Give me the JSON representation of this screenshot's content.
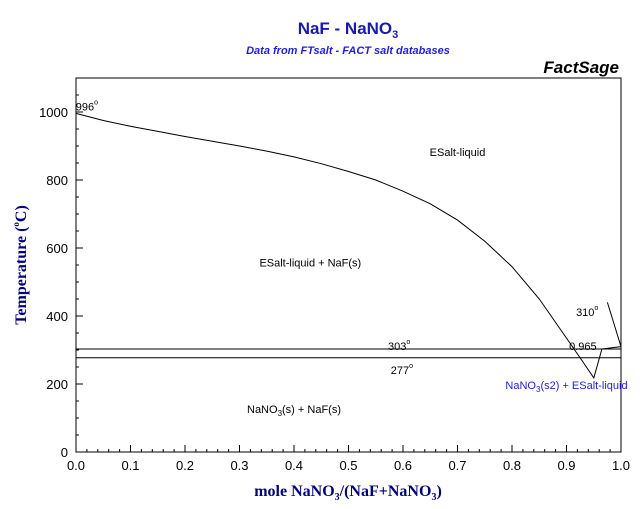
{
  "chart_data": {
    "type": "line",
    "title": "NaF - NaNO",
    "title_sub": "3",
    "subtitle": "Data from FTsalt - FACT salt databases",
    "brand": "FactSage",
    "xlabel": {
      "pre": "mole NaNO",
      "sub": "3",
      "post": "/(NaF+NaNO",
      "sub2": "3",
      "end": ")"
    },
    "ylabel": {
      "pre": "Temperature (",
      "deg": "o",
      "post": "C)"
    },
    "xlim": [
      0,
      1
    ],
    "ylim": [
      0,
      1100
    ],
    "x_ticks": [
      0.0,
      0.1,
      0.2,
      0.3,
      0.4,
      0.5,
      0.6,
      0.7,
      0.8,
      0.9,
      1.0
    ],
    "x_tick_labels": [
      "0.0",
      "0.1",
      "0.2",
      "0.3",
      "0.4",
      "0.5",
      "0.6",
      "0.7",
      "0.8",
      "0.9",
      "1.0"
    ],
    "y_ticks": [
      0,
      200,
      400,
      600,
      800,
      1000
    ],
    "y_tick_labels": [
      "0",
      "200",
      "400",
      "600",
      "800",
      "1000"
    ],
    "grid": false,
    "series": [
      {
        "x": [
          0.0,
          0.05,
          0.1,
          0.15,
          0.2,
          0.25,
          0.3,
          0.35,
          0.4,
          0.45,
          0.5,
          0.55,
          0.6,
          0.65,
          0.7,
          0.75,
          0.8,
          0.85,
          0.9,
          0.93,
          0.95,
          0.965
        ],
        "y": [
          996,
          975,
          958,
          943,
          928,
          914,
          900,
          885,
          868,
          848,
          825,
          800,
          767,
          730,
          682,
          620,
          545,
          450,
          335,
          265,
          218,
          303
        ]
      },
      {
        "x": [
          0.965,
          1.0
        ],
        "y": [
          303,
          310
        ]
      },
      {
        "x": [
          1.0,
          0.975
        ],
        "y": [
          310,
          440
        ]
      },
      {
        "x": [
          0.0,
          1.0
        ],
        "y": [
          303,
          303
        ]
      },
      {
        "x": [
          0.0,
          1.0
        ],
        "y": [
          277,
          277
        ]
      }
    ],
    "annotations": [
      {
        "text": "996",
        "deg": "o",
        "x": 0.02,
        "y": 1004,
        "color": "#000000"
      },
      {
        "text": "ESalt-liquid",
        "x": 0.7,
        "y": 870,
        "color": "#000000"
      },
      {
        "text": "ESalt-liquid + NaF(s)",
        "x": 0.43,
        "y": 545,
        "color": "#000000"
      },
      {
        "text": "310",
        "deg": "o",
        "x": 0.938,
        "y": 400,
        "color": "#000000"
      },
      {
        "text": "303",
        "deg": "o",
        "x": 0.593,
        "y": 300,
        "color": "#000000"
      },
      {
        "text": "0.965",
        "x": 0.93,
        "y": 300,
        "color": "#000000"
      },
      {
        "text": "277",
        "deg": "o",
        "x": 0.598,
        "y": 230,
        "color": "#000000"
      },
      {
        "text": "NaNO",
        "sub": "3",
        "post": "(s2) + ESalt-liquid",
        "x": 0.9,
        "y": 185,
        "color": "#1f1fd8"
      },
      {
        "text": "NaNO",
        "sub": "3",
        "post": "(s) + NaF(s)",
        "x": 0.4,
        "y": 115,
        "color": "#000000"
      }
    ]
  },
  "colors": {
    "title": "#1a1aa8",
    "subtitle": "#1f1fd8",
    "curve": "#000000",
    "axis_label": "#00007a"
  }
}
